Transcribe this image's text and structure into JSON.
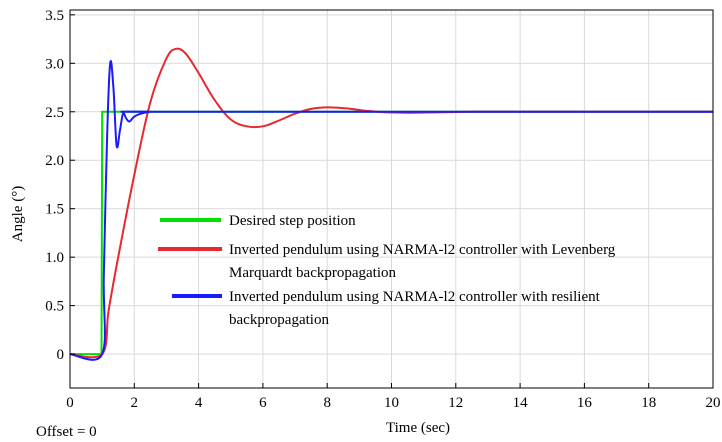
{
  "chart_data": {
    "type": "line",
    "title": "",
    "xlabel": "Time (sec)",
    "ylabel": "Angle (°)",
    "footnote": "Offset = 0",
    "xlim": [
      0,
      20
    ],
    "ylim": [
      -0.35,
      3.55
    ],
    "xticks": [
      0,
      2,
      4,
      6,
      8,
      10,
      12,
      14,
      16,
      18,
      20
    ],
    "yticks": [
      {
        "value": 0,
        "label": "0"
      },
      {
        "value": 0.5,
        "label": "0.5"
      },
      {
        "value": 1.0,
        "label": "1.0"
      },
      {
        "value": 1.5,
        "label": "1.5"
      },
      {
        "value": 2.0,
        "label": "2.0"
      },
      {
        "value": 2.5,
        "label": "2.5"
      },
      {
        "value": 3.0,
        "label": "3.0"
      },
      {
        "value": 3.5,
        "label": "3.5"
      }
    ],
    "grid": true,
    "legend_position": "center",
    "series": [
      {
        "name": "Desired step position",
        "color": "#00e000",
        "x": [
          0,
          0.98,
          1.0,
          1.02,
          20
        ],
        "y": [
          0,
          0,
          2.5,
          2.5,
          2.5
        ]
      },
      {
        "name": "Inverted pendulum using NARMA-l2 controller with Levenberg Marquardt backpropagation",
        "legend_lines": [
          "Inverted pendulum using NARMA-l2 controller with Levenberg",
          "Marquardt backpropagation"
        ],
        "color": "#e8282d",
        "x": [
          0,
          1.0,
          1.2,
          1.5,
          2.0,
          2.5,
          3.0,
          3.3,
          3.6,
          4.0,
          4.5,
          5.0,
          5.5,
          6.0,
          6.5,
          7.0,
          7.5,
          8.0,
          8.6,
          9.2,
          9.8,
          10.5,
          11.5,
          12.5,
          14.0,
          20.0
        ],
        "y": [
          0,
          0,
          0.45,
          1.0,
          1.85,
          2.6,
          3.05,
          3.15,
          3.1,
          2.9,
          2.62,
          2.42,
          2.35,
          2.35,
          2.41,
          2.48,
          2.53,
          2.545,
          2.535,
          2.51,
          2.495,
          2.49,
          2.495,
          2.5,
          2.5,
          2.5
        ]
      },
      {
        "name": "Inverted pendulum using NARMA-l2 controller with resilient backpropagation",
        "legend_lines": [
          "Inverted pendulum using NARMA-l2 controller with resilient",
          "backpropagation"
        ],
        "color": "#1a1aff",
        "x": [
          0,
          1.0,
          1.05,
          1.15,
          1.25,
          1.35,
          1.45,
          1.55,
          1.65,
          1.75,
          1.85,
          2.0,
          2.2,
          2.5,
          3.0,
          20.0
        ],
        "y": [
          0,
          0,
          0.8,
          2.2,
          3.0,
          2.75,
          2.15,
          2.3,
          2.48,
          2.43,
          2.4,
          2.45,
          2.48,
          2.5,
          2.5,
          2.5
        ]
      }
    ]
  }
}
